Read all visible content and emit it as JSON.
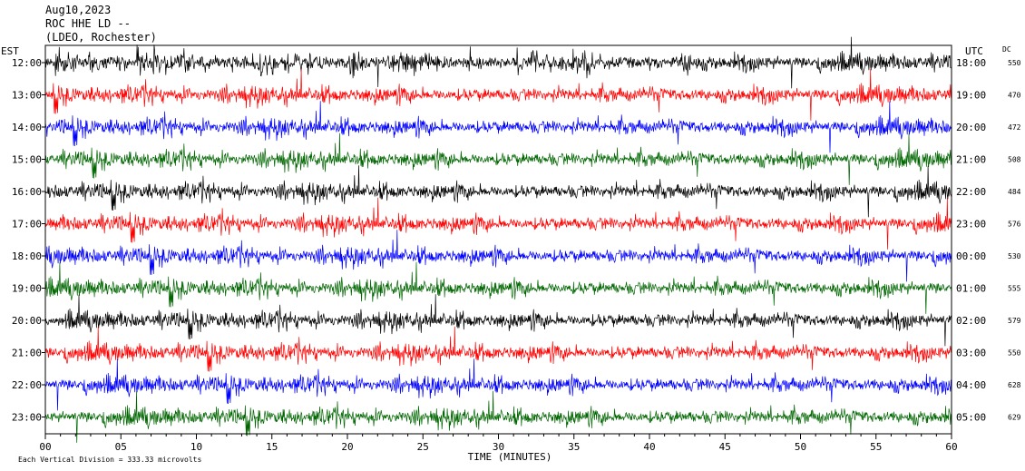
{
  "header": {
    "date": "Aug10,2023",
    "station": "ROC HHE LD --",
    "network": "(LDEO, Rochester)"
  },
  "left_axis_title": "EST",
  "right_axis_title": "UTC",
  "dc_title": "DC",
  "footer": {
    "scale": "Each Vertical Division =  333.33 microvolts"
  },
  "colors": {
    "black": "#000000",
    "red": "#ff0000",
    "blue": "#0000ff",
    "green": "#006600",
    "frame": "#000000"
  },
  "chart_data": {
    "type": "line",
    "xlabel": "TIME (MINUTES)",
    "xlim": [
      0,
      60
    ],
    "x_ticks": [
      "00",
      "05",
      "10",
      "15",
      "20",
      "25",
      "30",
      "35",
      "40",
      "45",
      "50",
      "55",
      "60"
    ],
    "traces": [
      {
        "est": "12:00",
        "utc": "18:00",
        "dc": "550",
        "color": "black"
      },
      {
        "est": "13:00",
        "utc": "19:00",
        "dc": "470",
        "color": "red"
      },
      {
        "est": "14:00",
        "utc": "20:00",
        "dc": "472",
        "color": "blue"
      },
      {
        "est": "15:00",
        "utc": "21:00",
        "dc": "508",
        "color": "green"
      },
      {
        "est": "16:00",
        "utc": "22:00",
        "dc": "484",
        "color": "black"
      },
      {
        "est": "17:00",
        "utc": "23:00",
        "dc": "576",
        "color": "red"
      },
      {
        "est": "18:00",
        "utc": "00:00",
        "dc": "530",
        "color": "blue"
      },
      {
        "est": "19:00",
        "utc": "01:00",
        "dc": "555",
        "color": "green"
      },
      {
        "est": "20:00",
        "utc": "02:00",
        "dc": "579",
        "color": "black"
      },
      {
        "est": "21:00",
        "utc": "03:00",
        "dc": "550",
        "color": "red"
      },
      {
        "est": "22:00",
        "utc": "04:00",
        "dc": "628",
        "color": "blue"
      },
      {
        "est": "23:00",
        "utc": "05:00",
        "dc": "629",
        "color": "green"
      }
    ]
  }
}
